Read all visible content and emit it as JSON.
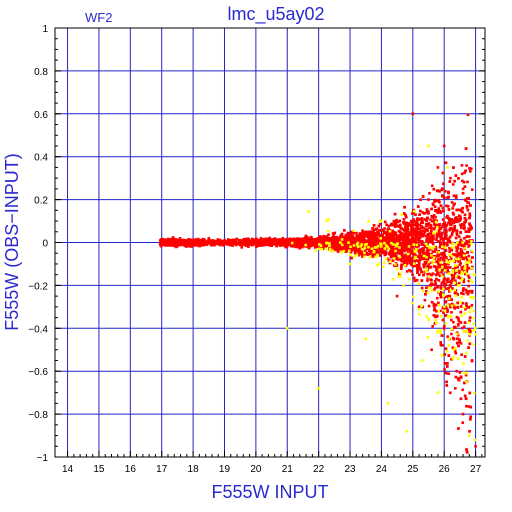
{
  "chart_data": {
    "type": "scatter",
    "title": "lmc_u5ay02",
    "panel_label": "WF2",
    "xlabel": "F555W INPUT",
    "ylabel": "F555W (OBS−INPUT)",
    "xlim": [
      13.6,
      27.3
    ],
    "ylim": [
      -1,
      1
    ],
    "x_ticks": [
      14,
      15,
      16,
      17,
      18,
      19,
      20,
      21,
      22,
      23,
      24,
      25,
      26,
      27
    ],
    "y_ticks": [
      -1,
      -0.8,
      -0.6,
      -0.4,
      -0.2,
      0,
      0.2,
      0.4,
      0.6,
      0.8,
      1
    ],
    "y_tick_labels": [
      "−1",
      "−0.8",
      "−0.6",
      "−0.4",
      "−0.2",
      "0",
      "0.2",
      "0.4",
      "0.6",
      "0.8",
      "1"
    ],
    "grid": true,
    "series": [
      {
        "color": "#ff0000",
        "marker": "square",
        "x_range": [
          16.9,
          27.1
        ],
        "sample_points": [
          [
            17.0,
            0.0
          ],
          [
            17.5,
            0.01
          ],
          [
            18.0,
            0.0
          ],
          [
            18.5,
            0.02
          ],
          [
            19.0,
            0.0
          ],
          [
            20.0,
            0.0
          ],
          [
            21.0,
            0.01
          ],
          [
            22.0,
            0.0
          ],
          [
            23.0,
            0.02
          ],
          [
            24.0,
            0.03
          ],
          [
            25.0,
            0.02
          ],
          [
            25.5,
            0.2
          ],
          [
            25.8,
            0.35
          ],
          [
            26.0,
            0.45
          ],
          [
            26.2,
            0.3
          ],
          [
            26.0,
            -0.4
          ],
          [
            26.4,
            -0.6
          ],
          [
            26.6,
            -0.8
          ],
          [
            27.0,
            -0.95
          ],
          [
            25.2,
            -0.3
          ],
          [
            25.6,
            -0.5
          ],
          [
            24.5,
            -0.25
          ],
          [
            25.0,
            0.6
          ]
        ]
      },
      {
        "color": "#ffff00",
        "marker": "square",
        "x_range": [
          20.0,
          27.0
        ],
        "sample_points": [
          [
            21.0,
            -0.4
          ],
          [
            22.0,
            -0.68
          ],
          [
            23.5,
            -0.45
          ],
          [
            24.2,
            -0.75
          ],
          [
            24.8,
            -0.88
          ],
          [
            25.3,
            -0.55
          ],
          [
            25.8,
            -0.7
          ],
          [
            26.0,
            -0.3
          ],
          [
            26.3,
            -0.5
          ],
          [
            26.5,
            -0.2
          ],
          [
            26.8,
            -0.9
          ],
          [
            25.5,
            0.45
          ],
          [
            26.1,
            0.35
          ],
          [
            24.0,
            0.1
          ],
          [
            23.0,
            -0.1
          ]
        ]
      }
    ]
  }
}
